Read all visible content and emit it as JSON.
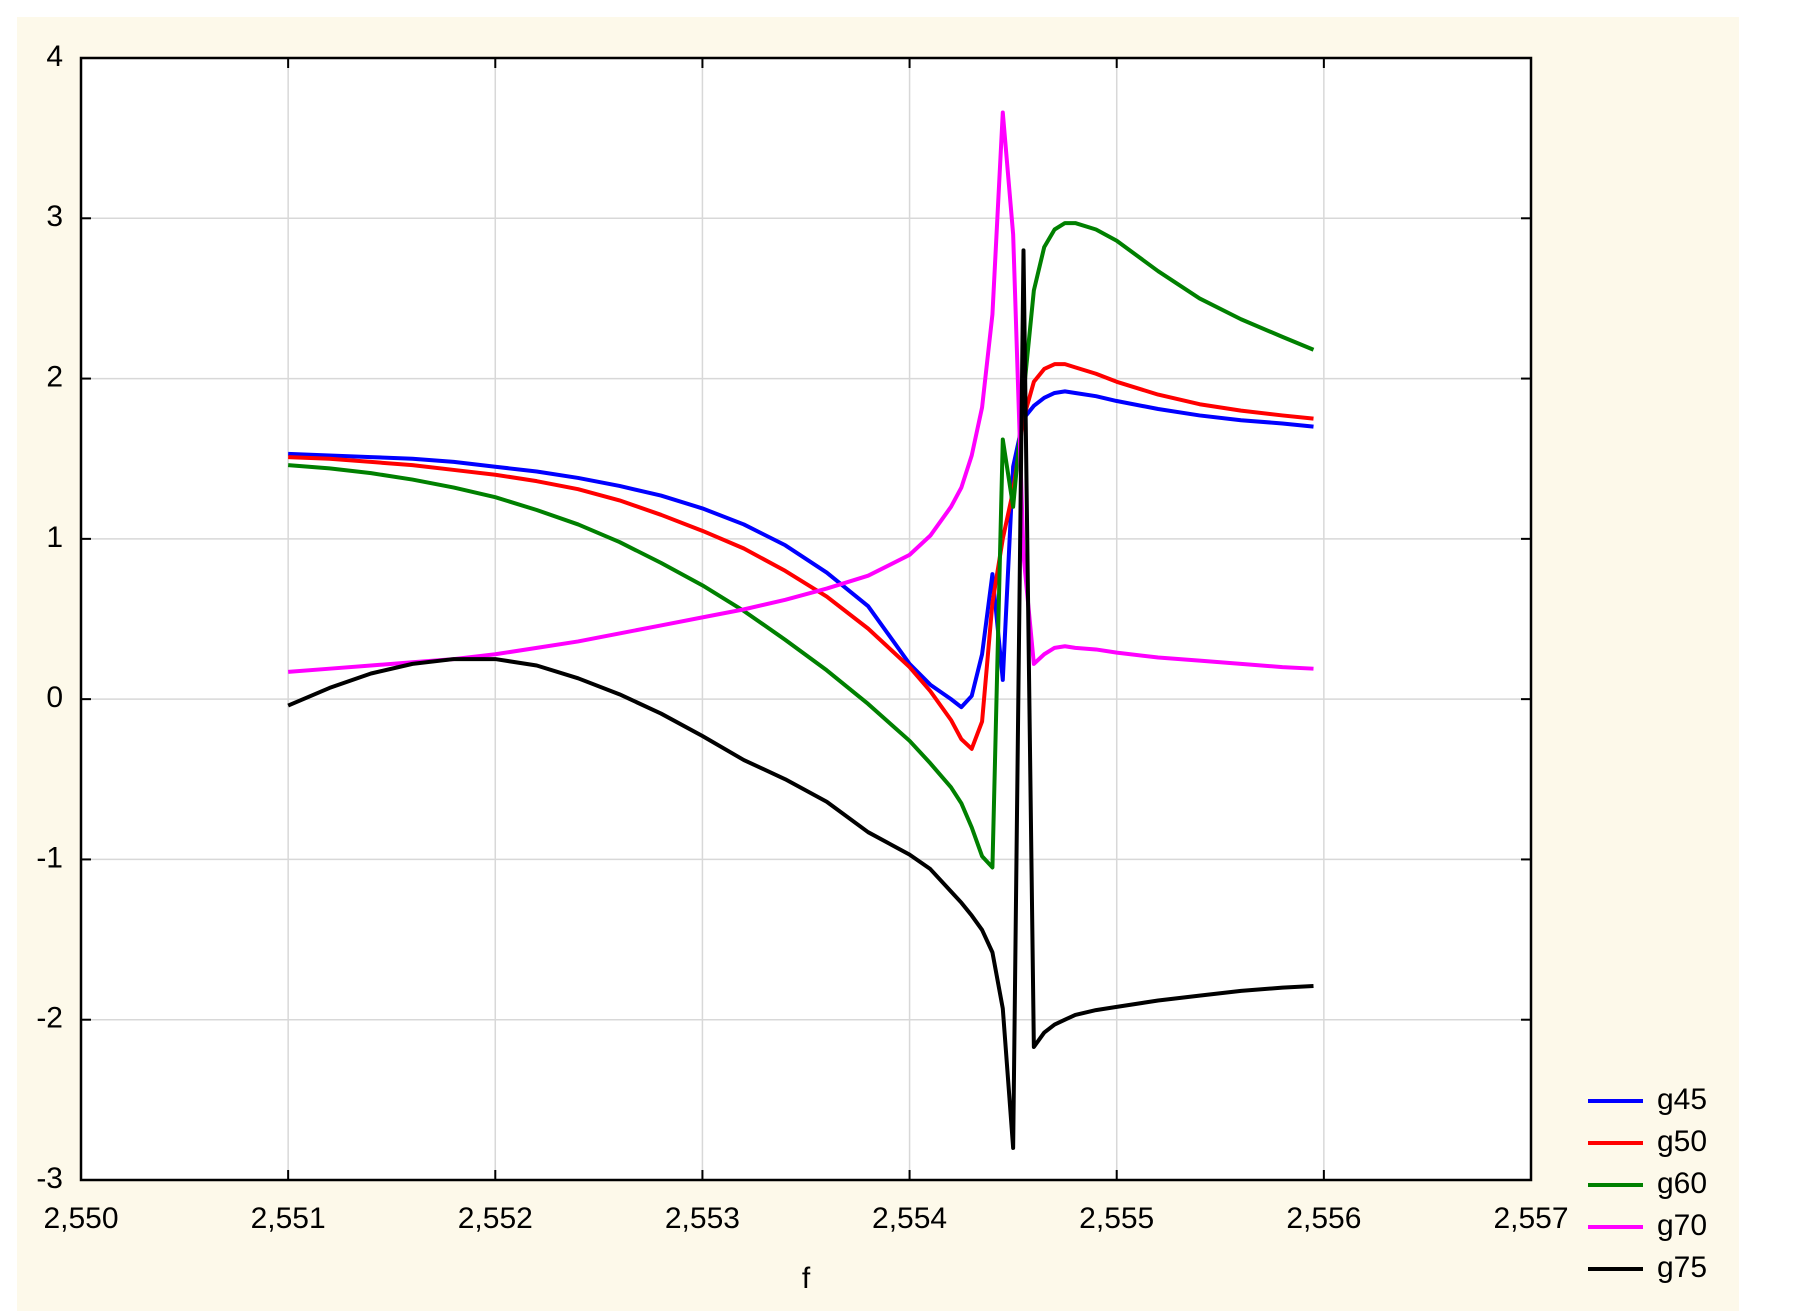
{
  "chart_data": {
    "type": "line",
    "x_label": "f",
    "x": [
      2.551,
      2.5512,
      2.5514,
      2.5516,
      2.5518,
      2.552,
      2.5522,
      2.5524,
      2.5526,
      2.5528,
      2.553,
      2.5532,
      2.5534,
      2.5536,
      2.5538,
      2.554,
      2.5541,
      2.5542,
      2.55425,
      2.5543,
      2.55435,
      2.5544,
      2.55445,
      2.5545,
      2.55455,
      2.5546,
      2.55465,
      2.5547,
      2.55475,
      2.5548,
      2.5549,
      2.555,
      2.5552,
      2.5554,
      2.5556,
      2.5558,
      2.55595
    ],
    "series": [
      {
        "name": "g45",
        "color": "#0000ff",
        "values": [
          1.53,
          1.52,
          1.51,
          1.5,
          1.48,
          1.45,
          1.42,
          1.38,
          1.33,
          1.27,
          1.19,
          1.09,
          0.96,
          0.79,
          0.58,
          0.22,
          0.09,
          0.0,
          -0.05,
          0.02,
          0.28,
          0.78,
          0.12,
          1.45,
          1.75,
          1.83,
          1.88,
          1.91,
          1.92,
          1.91,
          1.89,
          1.86,
          1.81,
          1.77,
          1.74,
          1.72,
          1.7
        ]
      },
      {
        "name": "g50",
        "color": "#ff0000",
        "values": [
          1.51,
          1.5,
          1.48,
          1.46,
          1.43,
          1.4,
          1.36,
          1.31,
          1.24,
          1.15,
          1.05,
          0.94,
          0.8,
          0.64,
          0.44,
          0.2,
          0.05,
          -0.13,
          -0.25,
          -0.31,
          -0.14,
          0.6,
          1.0,
          1.3,
          1.75,
          1.98,
          2.06,
          2.09,
          2.09,
          2.07,
          2.03,
          1.98,
          1.9,
          1.84,
          1.8,
          1.77,
          1.75
        ]
      },
      {
        "name": "g60",
        "color": "#008000",
        "values": [
          1.46,
          1.44,
          1.41,
          1.37,
          1.32,
          1.26,
          1.18,
          1.09,
          0.98,
          0.85,
          0.71,
          0.55,
          0.37,
          0.18,
          -0.03,
          -0.26,
          -0.4,
          -0.55,
          -0.65,
          -0.8,
          -0.98,
          -1.05,
          1.62,
          1.2,
          1.9,
          2.55,
          2.82,
          2.93,
          2.97,
          2.97,
          2.93,
          2.86,
          2.67,
          2.5,
          2.37,
          2.26,
          2.18
        ]
      },
      {
        "name": "g70",
        "color": "#ff00ff",
        "values": [
          0.17,
          0.19,
          0.21,
          0.23,
          0.25,
          0.28,
          0.32,
          0.36,
          0.41,
          0.46,
          0.51,
          0.56,
          0.62,
          0.69,
          0.77,
          0.9,
          1.02,
          1.2,
          1.32,
          1.52,
          1.82,
          2.4,
          3.66,
          2.9,
          0.9,
          0.22,
          0.28,
          0.32,
          0.33,
          0.32,
          0.31,
          0.29,
          0.26,
          0.24,
          0.22,
          0.2,
          0.19
        ]
      },
      {
        "name": "g75",
        "color": "#000000",
        "values": [
          -0.04,
          0.07,
          0.16,
          0.22,
          0.25,
          0.25,
          0.21,
          0.13,
          0.03,
          -0.09,
          -0.23,
          -0.38,
          -0.5,
          -0.64,
          -0.83,
          -0.97,
          -1.06,
          -1.2,
          -1.27,
          -1.35,
          -1.44,
          -1.58,
          -1.93,
          -2.8,
          2.8,
          -2.17,
          -2.08,
          -2.03,
          -2.0,
          -1.97,
          -1.94,
          -1.92,
          -1.88,
          -1.85,
          -1.82,
          -1.8,
          -1.79
        ]
      }
    ],
    "xlim": [
      2.55,
      2.557
    ],
    "xticks": [
      {
        "value": 2.55,
        "label": "2,550"
      },
      {
        "value": 2.551,
        "label": "2,551"
      },
      {
        "value": 2.552,
        "label": "2,552"
      },
      {
        "value": 2.553,
        "label": "2,553"
      },
      {
        "value": 2.554,
        "label": "2,554"
      },
      {
        "value": 2.555,
        "label": "2,555"
      },
      {
        "value": 2.556,
        "label": "2,556"
      },
      {
        "value": 2.557,
        "label": "2,557"
      }
    ],
    "ylim": [
      -3,
      4
    ],
    "yticks": [
      -3,
      -2,
      -1,
      0,
      1,
      2,
      3,
      4
    ],
    "grid": true,
    "legend": "lower right"
  }
}
